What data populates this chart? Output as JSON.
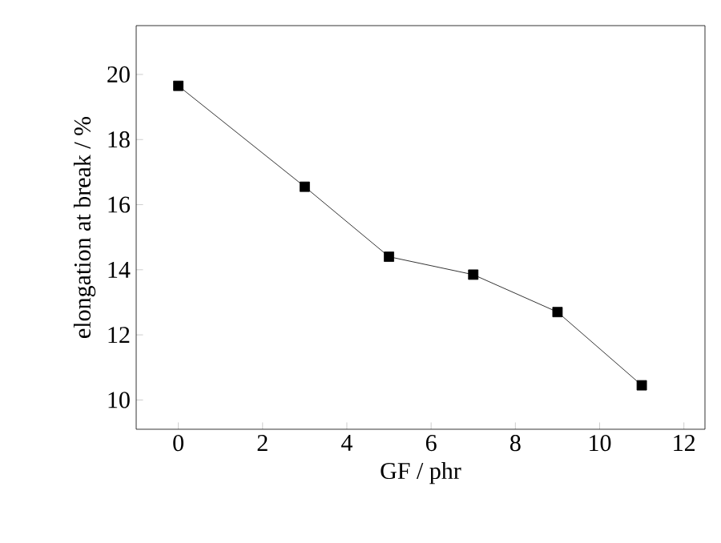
{
  "chart_data": {
    "type": "line",
    "xlabel": "GF / phr",
    "ylabel": "elongation at break / %",
    "x": [
      0,
      3,
      5,
      7,
      9,
      11
    ],
    "values": [
      19.65,
      16.55,
      14.4,
      13.85,
      12.7,
      10.45
    ],
    "color": "#000000",
    "marker": "square",
    "line_style": "solid",
    "xlim": [
      -1,
      12.5
    ],
    "ylim": [
      9.1,
      21.5
    ],
    "xticks": [
      0,
      2,
      4,
      6,
      8,
      10,
      12
    ],
    "yticks": [
      10,
      12,
      14,
      16,
      18,
      20
    ],
    "grid": false
  }
}
